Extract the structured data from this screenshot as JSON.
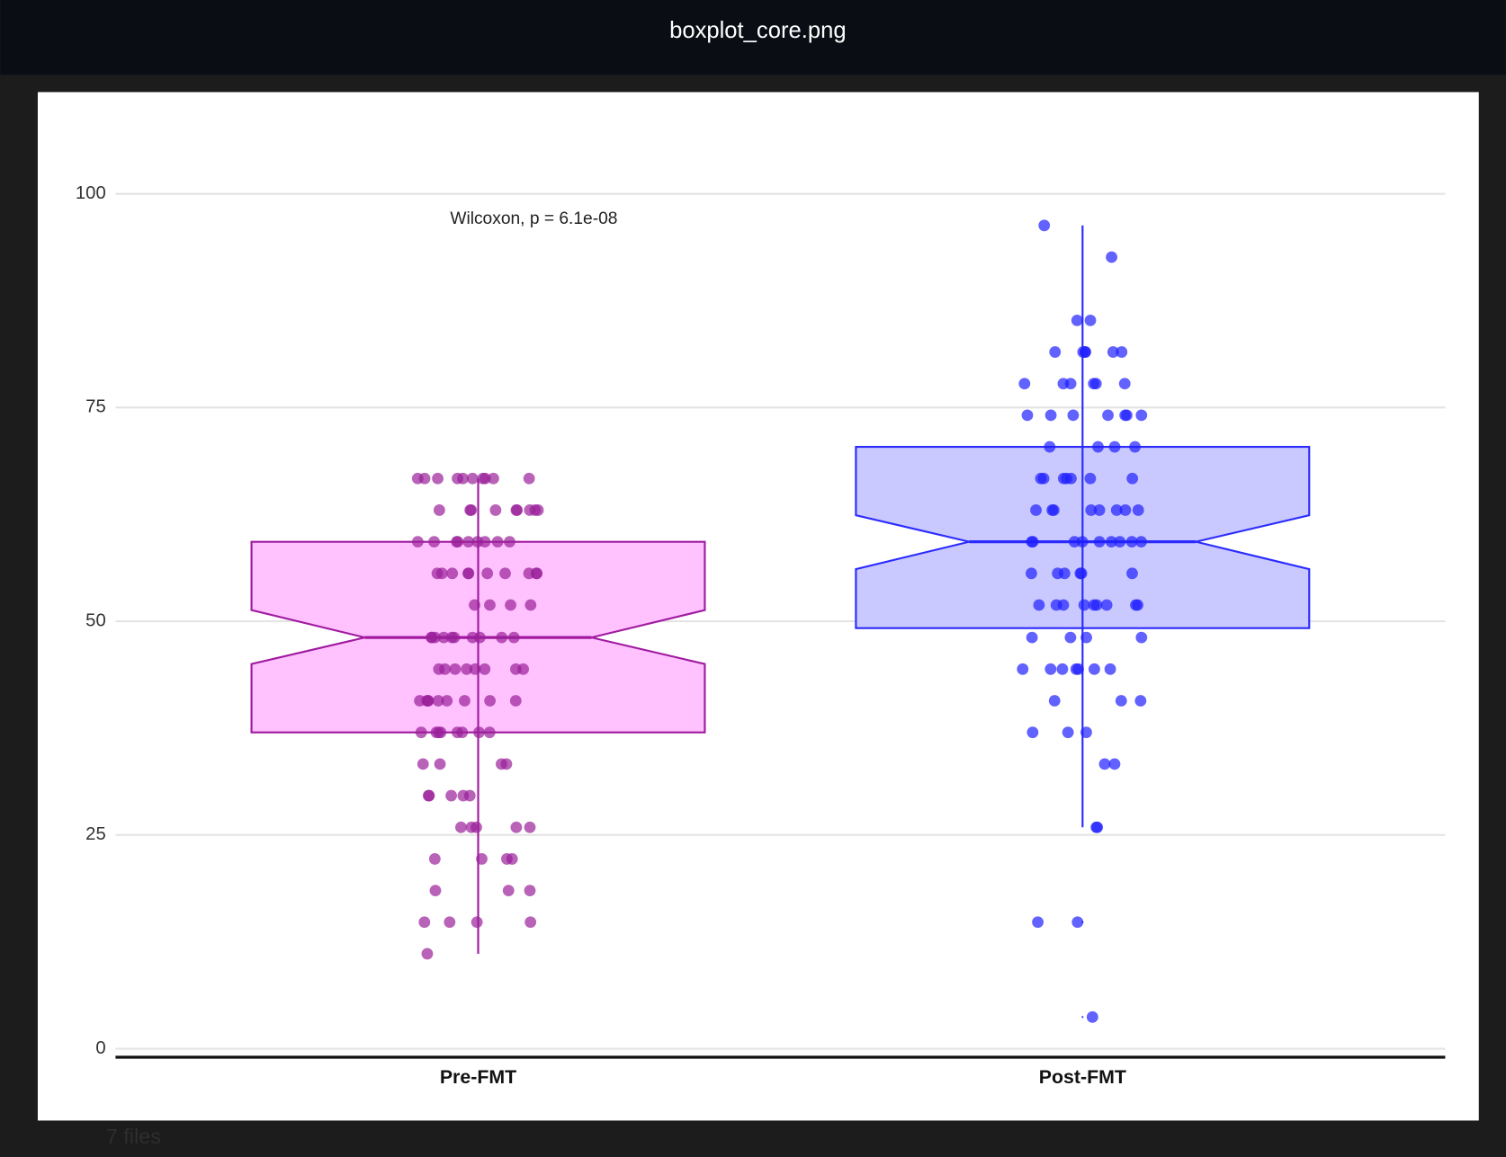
{
  "window_title": "boxplot_core.png",
  "footer_text": "7 files",
  "chart_data": {
    "type": "box",
    "annotation": "Wilcoxon, p = 6.1e-08",
    "categories": [
      "Pre-FMT",
      "Post-FMT"
    ],
    "ylim": [
      -1,
      105
    ],
    "yticks": [
      0,
      25,
      50,
      75,
      100
    ],
    "grid": true,
    "boxes": [
      {
        "color": "#a01aa0",
        "fill": "#ffc2ff",
        "point_color": "#9a1f9a",
        "whisker_low": 11.1,
        "q1": 37,
        "notch_low": 45,
        "median": 48.1,
        "notch_high": 51.3,
        "q3": 59.3,
        "whisker_high": 66.7,
        "outliers": [],
        "points": [
          66.7,
          66.7,
          66.7,
          66.7,
          66.7,
          66.7,
          66.7,
          66.7,
          66.7,
          66.7,
          63,
          63,
          63,
          63,
          63,
          63,
          63,
          63,
          63,
          59.3,
          59.3,
          59.3,
          59.3,
          59.3,
          59.3,
          59.3,
          59.3,
          59.3,
          55.6,
          55.6,
          55.6,
          55.6,
          55.6,
          55.6,
          55.6,
          55.6,
          55.6,
          55.6,
          51.9,
          51.9,
          51.9,
          51.9,
          48.1,
          48.1,
          48.1,
          48.1,
          48.1,
          48.1,
          48.1,
          48.1,
          48.1,
          48.1,
          44.4,
          44.4,
          44.4,
          44.4,
          44.4,
          44.4,
          44.4,
          44.4,
          40.7,
          40.7,
          40.7,
          40.7,
          40.7,
          40.7,
          40.7,
          40.7,
          40.7,
          37,
          37,
          37,
          37,
          37,
          37,
          37,
          37,
          33.3,
          33.3,
          33.3,
          33.3,
          29.6,
          29.6,
          29.6,
          29.6,
          29.6,
          25.9,
          25.9,
          25.9,
          25.9,
          25.9,
          22.2,
          22.2,
          22.2,
          22.2,
          18.5,
          18.5,
          18.5,
          14.8,
          14.8,
          14.8,
          14.8,
          11.1
        ]
      },
      {
        "color": "#2b2bff",
        "fill": "#c9c9ff",
        "point_color": "#1f1fff",
        "whisker_low": 25.9,
        "q1": 49.2,
        "notch_low": 56.1,
        "median": 59.3,
        "notch_high": 62.4,
        "q3": 70.4,
        "whisker_high": 96.3,
        "outliers": [
          14.8,
          3.7
        ],
        "points": [
          96.3,
          92.6,
          85.2,
          85.2,
          81.5,
          81.5,
          81.5,
          81.5,
          81.5,
          81.5,
          77.8,
          77.8,
          77.8,
          77.8,
          77.8,
          77.8,
          74.1,
          74.1,
          74.1,
          74.1,
          74.1,
          74.1,
          74.1,
          70.4,
          70.4,
          70.4,
          70.4,
          66.7,
          66.7,
          66.7,
          66.7,
          66.7,
          66.7,
          66.7,
          63,
          63,
          63,
          63,
          63,
          63,
          63,
          63,
          59.3,
          59.3,
          59.3,
          59.3,
          59.3,
          59.3,
          59.3,
          59.3,
          59.3,
          55.6,
          55.6,
          55.6,
          55.6,
          55.6,
          55.6,
          51.9,
          51.9,
          51.9,
          51.9,
          51.9,
          51.9,
          51.9,
          51.9,
          51.9,
          48.1,
          48.1,
          48.1,
          48.1,
          44.4,
          44.4,
          44.4,
          44.4,
          44.4,
          44.4,
          44.4,
          40.7,
          40.7,
          40.7,
          37,
          37,
          37,
          33.3,
          33.3,
          25.9,
          25.9,
          14.8,
          14.8,
          3.7
        ]
      }
    ]
  }
}
